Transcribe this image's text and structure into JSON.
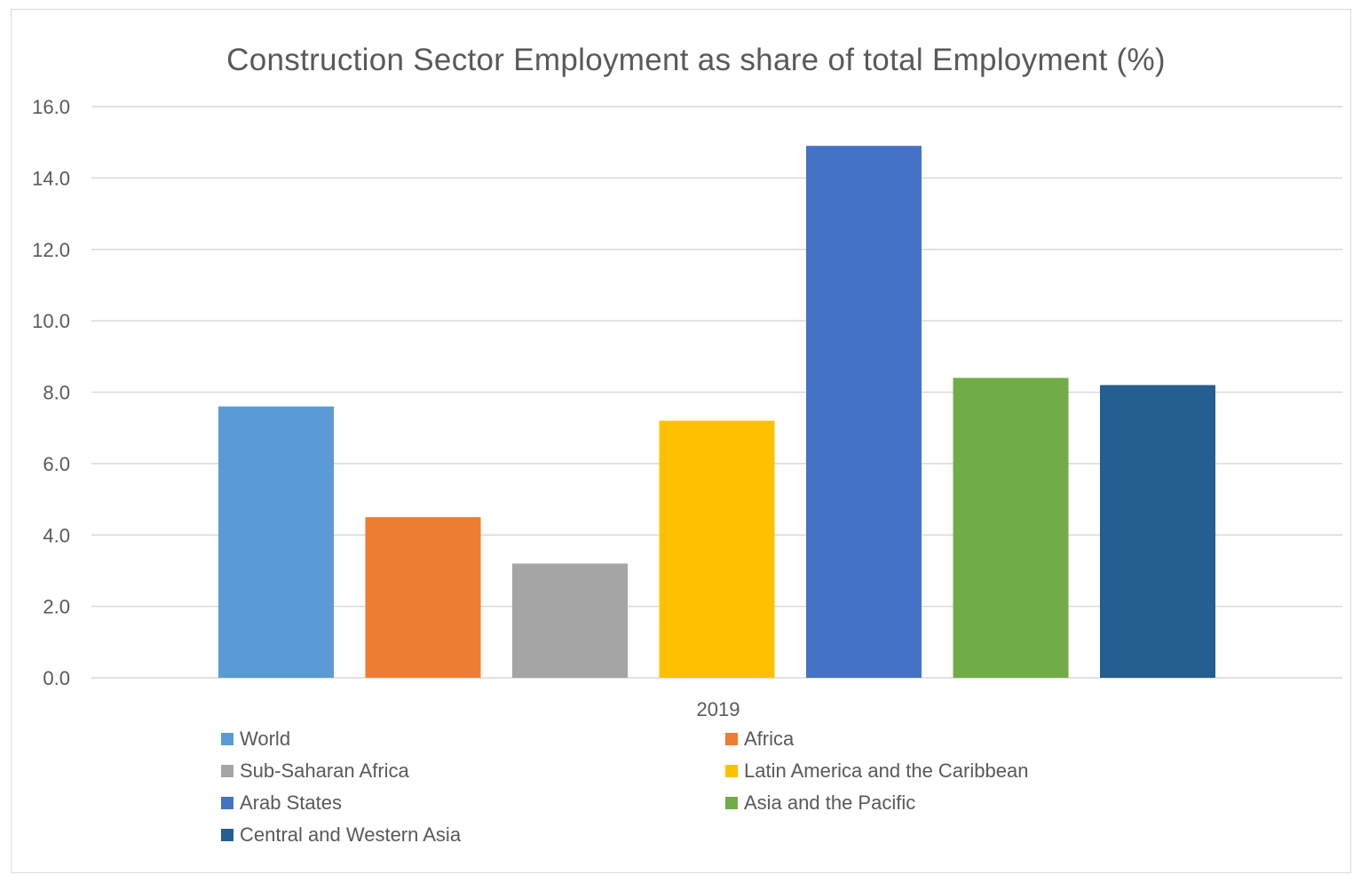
{
  "chart_data": {
    "type": "bar",
    "title": "Construction Sector Employment as share of total Employment (%)",
    "categories": [
      "2019"
    ],
    "series": [
      {
        "name": "World",
        "values": [
          7.6
        ],
        "color": "#5B9BD5"
      },
      {
        "name": "Africa",
        "values": [
          4.5
        ],
        "color": "#ED7D31"
      },
      {
        "name": "Sub-Saharan Africa",
        "values": [
          3.2
        ],
        "color": "#A5A5A5"
      },
      {
        "name": "Latin America and the Caribbean",
        "values": [
          7.2
        ],
        "color": "#FFC000"
      },
      {
        "name": "Arab States",
        "values": [
          14.9
        ],
        "color": "#4472C4"
      },
      {
        "name": "Asia and the Pacific",
        "values": [
          8.4
        ],
        "color": "#70AD47"
      },
      {
        "name": "Central and Western Asia",
        "values": [
          8.2
        ],
        "color": "#255E91"
      }
    ],
    "yticks": [
      "0.0",
      "2.0",
      "4.0",
      "6.0",
      "8.0",
      "10.0",
      "12.0",
      "14.0",
      "16.0"
    ],
    "ylim": [
      0,
      16
    ],
    "xlabel": "",
    "ylabel": "",
    "grid": true,
    "legend_position": "bottom"
  }
}
